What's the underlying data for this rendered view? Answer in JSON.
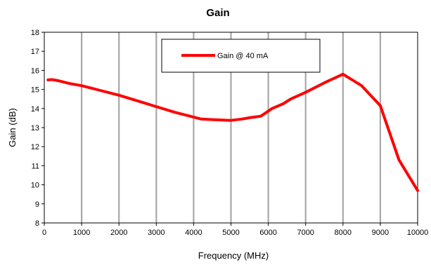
{
  "chart_data": {
    "type": "line",
    "title": "Gain",
    "xlabel": "Frequency (MHz)",
    "ylabel": "Gain (dB)",
    "xlim": [
      0,
      10000
    ],
    "ylim": [
      8,
      18
    ],
    "xticks": [
      0,
      1000,
      2000,
      3000,
      4000,
      5000,
      6000,
      7000,
      8000,
      9000,
      10000
    ],
    "yticks": [
      8,
      9,
      10,
      11,
      12,
      13,
      14,
      15,
      16,
      17,
      18
    ],
    "grid": "vertical",
    "legend": "top-center",
    "series": [
      {
        "name": "Gain @  40 mA",
        "color": "#ff0000",
        "x": [
          100,
          200,
          400,
          700,
          1000,
          1500,
          2000,
          2500,
          3000,
          3500,
          3800,
          4200,
          4500,
          5000,
          5300,
          5500,
          5800,
          6100,
          6400,
          6600,
          7000,
          7500,
          8000,
          8500,
          9000,
          9500,
          10000
        ],
        "y": [
          15.5,
          15.52,
          15.45,
          15.3,
          15.2,
          14.95,
          14.7,
          14.4,
          14.1,
          13.8,
          13.65,
          13.45,
          13.42,
          13.38,
          13.45,
          13.52,
          13.6,
          14.0,
          14.25,
          14.5,
          14.85,
          15.35,
          15.8,
          15.2,
          14.15,
          11.3,
          9.7
        ]
      }
    ]
  }
}
